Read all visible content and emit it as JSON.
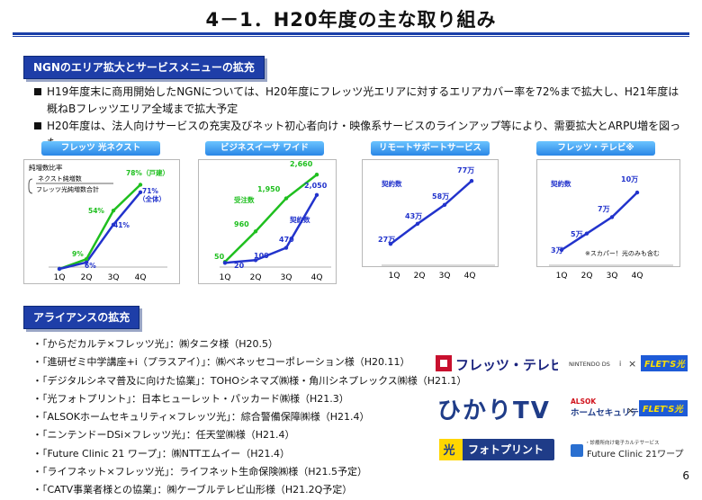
{
  "title": "4－1．H20年度の主な取り組み",
  "section1": {
    "label": "NGNのエリア拡大とサービスメニューの拡充"
  },
  "bullets": [
    {
      "line1": "H19年度末に商用開始したNGNについては、H20年度にフレッツ光エリアに対するエリアカバー率を72%まで拡大し、H21年度は",
      "line2": "概ねBフレッツエリア全域まで拡大予定"
    },
    {
      "line1": "H20年度は、法人向けサービスの充実及びネット初心者向け・映像系サービスのラインアップ等により、需要拡大とARPU増を図った",
      "line2": ""
    }
  ],
  "charts": {
    "next": {
      "title": "フレッツ 光ネクスト",
      "legend_title": "純増数比率",
      "legend_num": "ネクスト純増数",
      "legend_den": "フレッツ光純増数合計",
      "categories": [
        "1Q",
        "2Q",
        "3Q",
        "4Q"
      ],
      "series": [
        {
          "name": "戸建",
          "values": [
            0,
            9,
            54,
            78
          ],
          "labels": [
            "",
            "9%",
            "54%",
            "78%（戸建）"
          ]
        },
        {
          "name": "全体",
          "values": [
            0,
            6,
            41,
            71
          ],
          "labels": [
            "",
            "6%",
            "41%",
            "71%\n（全体）"
          ]
        }
      ]
    },
    "biz": {
      "title": "ビジネスイーサ ワイド",
      "categories": [
        "1Q",
        "2Q",
        "3Q",
        "4Q"
      ],
      "series": [
        {
          "name": "受注数",
          "values": [
            50,
            960,
            1950,
            2660
          ],
          "labels": [
            "50",
            "960",
            "1,950",
            "2,660"
          ]
        },
        {
          "name": "契約数",
          "values": [
            20,
            100,
            470,
            2050
          ],
          "labels": [
            "20",
            "100",
            "470",
            "2,050"
          ]
        }
      ]
    },
    "remote": {
      "title": "リモートサポートサービス",
      "series_label": "契約数",
      "categories": [
        "1Q",
        "2Q",
        "3Q",
        "4Q"
      ],
      "values": [
        27,
        43,
        58,
        77
      ],
      "labels": [
        "27万",
        "43万",
        "58万",
        "77万"
      ]
    },
    "tv": {
      "title": "フレッツ・テレビ※",
      "series_label": "契約数",
      "note": "※スカパー！光のみも含む",
      "categories": [
        "1Q",
        "2Q",
        "3Q",
        "4Q"
      ],
      "values": [
        3,
        5,
        7,
        10
      ],
      "labels": [
        "3万",
        "5万",
        "7万",
        "10万"
      ]
    }
  },
  "section2": {
    "label": "アライアンスの拡充"
  },
  "alliances": [
    "・「からだカルテ×フレッツ光」：㈱タニタ様（H20.5）",
    "・「進研ゼミ中学講座+i（プラスアイ）」：㈱ベネッセコーポレーション様（H20.11）",
    "・「デジタルシネマ普及に向けた協業」：TOHOシネマズ㈱様・角川シネプレックス㈱様（H21.1）",
    "・「光フォトプリント」：日本ヒューレット・パッカード㈱様（H21.3）",
    "・「ALSOKホームセキュリティ×フレッツ光」：綜合警備保障㈱様（H21.4）",
    "・「ニンテンドーDSi×フレッツ光」：任天堂㈱様（H21.4）",
    "・「Future Clinic 21 ワープ」：㈱NTTエムイー（H21.4）",
    "・「ライフネット×フレッツ光」：ライフネット生命保険㈱様（H21.5予定）",
    "・「CATV事業者様との協業」：㈱ケーブルテレビ山形様（H21.2Q予定）"
  ],
  "logos": {
    "flets_tv": "フレッツ・テレビ",
    "hikari_tv": "ひかりTV",
    "photo_print": "フォトプリント",
    "nintendo": "NINTENDO DS",
    "nintendo_i": "i",
    "cross": "×",
    "flets_hikari": "FLET'S光",
    "alsok": "ALSOK",
    "alsok_sub": "ホームセキュリティ",
    "fc21_small": "・診療所向け電子カルテサービス",
    "fc21": "Future Clinic 21ワープ"
  },
  "colors": {
    "accent_blue": "#1e3ea8",
    "series_green": "#1fbf1f",
    "series_blue": "#2233cc"
  },
  "page_number": "6"
}
